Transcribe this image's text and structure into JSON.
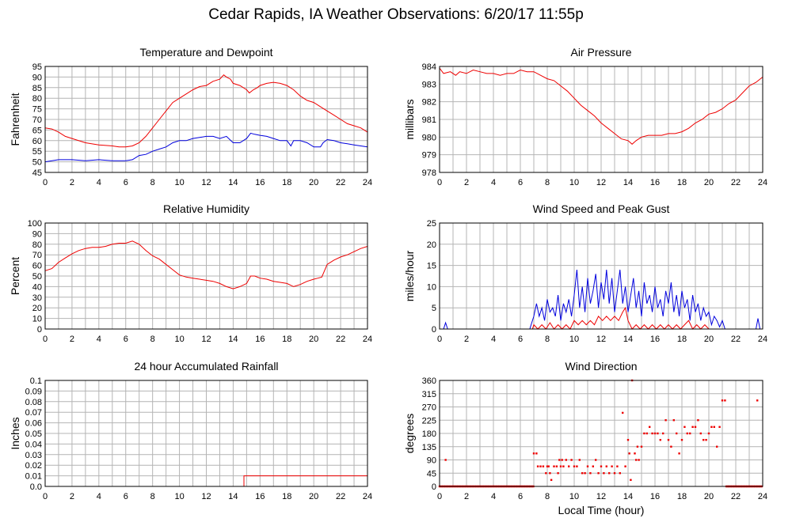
{
  "page": {
    "title": "Cedar Rapids, IA Weather Observations: 6/20/17 11:55p",
    "xaxis_label": "Local Time (hour)"
  },
  "colors": {
    "red": "#ee0000",
    "blue": "#0000dd",
    "grid": "#b4b4b4"
  },
  "chart_data": [
    {
      "id": "temp",
      "type": "line",
      "title": "Temperature and Dewpoint",
      "ylabel": "Fahrenheit",
      "xlim": [
        0,
        24
      ],
      "ylim": [
        45,
        95
      ],
      "xticks": [
        0,
        2,
        4,
        6,
        8,
        10,
        12,
        14,
        16,
        18,
        20,
        22,
        24
      ],
      "yticks": [
        45,
        50,
        55,
        60,
        65,
        70,
        75,
        80,
        85,
        90,
        95
      ],
      "series": [
        {
          "color": "#ee0000",
          "x": [
            0,
            0.5,
            1,
            1.5,
            2,
            3,
            4,
            5,
            5.5,
            6,
            6.5,
            7,
            7.5,
            8,
            8.5,
            9,
            9.5,
            10,
            10.5,
            11,
            11.5,
            12,
            12.5,
            13,
            13.3,
            13.5,
            13.8,
            14,
            14.5,
            15,
            15.2,
            15.5,
            15.8,
            16,
            16.5,
            17,
            17.5,
            18,
            18.5,
            19,
            19.5,
            20,
            20.5,
            21,
            21.5,
            22,
            22.5,
            23,
            23.5,
            24
          ],
          "y": [
            66,
            65.5,
            64,
            62,
            61,
            59,
            58,
            57.5,
            57,
            57,
            57.5,
            59,
            62,
            66,
            70,
            74,
            78,
            80,
            82,
            84,
            85.5,
            86,
            88,
            89,
            91,
            90,
            89,
            87,
            86,
            84,
            82.5,
            84,
            85,
            86,
            87,
            87.5,
            87,
            86,
            84,
            81,
            79,
            78,
            76,
            74,
            72,
            70,
            68,
            67,
            66,
            64
          ]
        },
        {
          "color": "#0000dd",
          "x": [
            0,
            1,
            2,
            3,
            4,
            5,
            6,
            6.5,
            7,
            7.5,
            8,
            8.5,
            9,
            9.5,
            10,
            10.5,
            11,
            11.5,
            12,
            12.5,
            13,
            13.5,
            14,
            14.5,
            15,
            15.3,
            15.6,
            16,
            16.5,
            17,
            17.5,
            18,
            18.3,
            18.5,
            19,
            19.5,
            20,
            20.5,
            20.7,
            21,
            21.5,
            22,
            22.5,
            23,
            23.5,
            24
          ],
          "y": [
            50,
            51,
            51,
            50.5,
            51,
            50.5,
            50.5,
            51,
            53,
            53.5,
            55,
            56,
            57,
            59,
            60,
            60,
            61,
            61.5,
            62,
            62,
            61,
            62,
            59,
            59,
            61,
            63.5,
            63,
            62.5,
            62,
            61,
            60,
            60,
            57.5,
            60,
            60,
            59,
            57,
            57,
            59,
            60.5,
            60,
            59,
            58.5,
            58,
            57.5,
            57
          ]
        }
      ]
    },
    {
      "id": "pressure",
      "type": "line",
      "title": "Air Pressure",
      "ylabel": "millibars",
      "xlim": [
        0,
        24
      ],
      "ylim": [
        978,
        984
      ],
      "xticks": [
        0,
        2,
        4,
        6,
        8,
        10,
        12,
        14,
        16,
        18,
        20,
        22,
        24
      ],
      "yticks": [
        978,
        979,
        980,
        981,
        982,
        983,
        984
      ],
      "series": [
        {
          "color": "#ee0000",
          "x": [
            0,
            0.3,
            0.8,
            1.2,
            1.5,
            2,
            2.5,
            3,
            3.5,
            4,
            4.5,
            5,
            5.5,
            6,
            6.5,
            7,
            7.5,
            8,
            8.5,
            9,
            9.5,
            10,
            10.5,
            11,
            11.5,
            12,
            12.5,
            13,
            13.5,
            14,
            14.3,
            14.6,
            15,
            15.5,
            16,
            16.5,
            17,
            17.5,
            18,
            18.5,
            19,
            19.5,
            20,
            20.5,
            21,
            21.5,
            22,
            22.5,
            23,
            23.5,
            24
          ],
          "y": [
            983.9,
            983.6,
            983.7,
            983.5,
            983.7,
            983.6,
            983.8,
            983.7,
            983.6,
            983.6,
            983.5,
            983.6,
            983.6,
            983.8,
            983.7,
            983.7,
            983.5,
            983.3,
            983.2,
            982.9,
            982.6,
            982.2,
            981.8,
            981.5,
            981.2,
            980.8,
            980.5,
            980.2,
            979.9,
            979.8,
            979.6,
            979.8,
            980,
            980.1,
            980.1,
            980.1,
            980.2,
            980.2,
            980.3,
            980.5,
            980.8,
            981,
            981.3,
            981.4,
            981.6,
            981.9,
            982.1,
            982.5,
            982.9,
            983.1,
            983.4
          ]
        }
      ]
    },
    {
      "id": "rh",
      "type": "line",
      "title": "Relative Humidity",
      "ylabel": "Percent",
      "xlim": [
        0,
        24
      ],
      "ylim": [
        0,
        100
      ],
      "xticks": [
        0,
        2,
        4,
        6,
        8,
        10,
        12,
        14,
        16,
        18,
        20,
        22,
        24
      ],
      "yticks": [
        0,
        10,
        20,
        30,
        40,
        50,
        60,
        70,
        80,
        90,
        100
      ],
      "series": [
        {
          "color": "#ee0000",
          "x": [
            0,
            0.5,
            1,
            1.5,
            2,
            2.5,
            3,
            3.5,
            4,
            4.5,
            5,
            5.5,
            6,
            6.5,
            7,
            7.5,
            8,
            8.5,
            9,
            9.5,
            10,
            10.5,
            11,
            11.5,
            12,
            12.5,
            13,
            13.5,
            14,
            14.5,
            15,
            15.3,
            15.6,
            16,
            16.5,
            17,
            17.5,
            18,
            18.5,
            19,
            19.5,
            20,
            20.3,
            20.6,
            21,
            21.5,
            22,
            22.5,
            23,
            23.5,
            24
          ],
          "y": [
            55,
            57,
            63,
            67,
            71,
            74,
            76,
            77,
            77,
            78,
            80,
            81,
            81,
            83,
            80,
            74,
            69,
            66,
            61,
            56,
            51,
            49,
            48,
            47,
            46,
            45,
            43,
            40,
            38,
            40,
            43,
            50,
            50,
            48,
            47,
            45,
            44,
            43,
            40,
            42,
            45,
            47,
            48,
            49,
            61,
            65,
            68,
            70,
            73,
            76,
            78
          ]
        }
      ]
    },
    {
      "id": "wind",
      "type": "line",
      "title": "Wind Speed and Peak Gust",
      "ylabel": "miles/hour",
      "xlim": [
        0,
        24
      ],
      "ylim": [
        0,
        25
      ],
      "xticks": [
        0,
        2,
        4,
        6,
        8,
        10,
        12,
        14,
        16,
        18,
        20,
        22,
        24
      ],
      "yticks": [
        0,
        5,
        10,
        15,
        20,
        25
      ],
      "series": [
        {
          "color": "#0000dd",
          "x": [
            0,
            0.3,
            0.45,
            0.6,
            1,
            6.7,
            7,
            7.2,
            7.4,
            7.6,
            7.8,
            8,
            8.2,
            8.4,
            8.6,
            8.8,
            9,
            9.2,
            9.4,
            9.6,
            9.8,
            10,
            10.2,
            10.4,
            10.6,
            10.8,
            11,
            11.2,
            11.4,
            11.6,
            11.8,
            12,
            12.2,
            12.4,
            12.6,
            12.8,
            13,
            13.2,
            13.4,
            13.6,
            13.8,
            14,
            14.2,
            14.4,
            14.6,
            14.8,
            15,
            15.2,
            15.4,
            15.6,
            15.8,
            16,
            16.2,
            16.4,
            16.6,
            16.8,
            17,
            17.2,
            17.4,
            17.6,
            17.8,
            18,
            18.2,
            18.4,
            18.6,
            18.8,
            19,
            19.2,
            19.4,
            19.6,
            19.8,
            20,
            20.2,
            20.4,
            20.6,
            20.8,
            21,
            21.2,
            21.3,
            23.5,
            23.65,
            23.8,
            24
          ],
          "y": [
            0,
            0,
            1.5,
            0,
            0,
            0,
            3,
            6,
            3,
            5,
            2,
            7,
            4,
            5,
            3,
            8,
            2,
            6,
            4,
            7,
            3,
            8,
            14,
            5,
            10,
            4,
            12,
            6,
            9,
            13,
            5,
            11,
            7,
            14,
            6,
            12,
            4,
            9,
            14,
            6,
            10,
            4,
            8,
            12,
            5,
            9,
            3,
            11,
            6,
            8,
            4,
            10,
            5,
            7,
            3,
            9,
            6,
            11,
            4,
            8,
            3,
            9,
            5,
            7,
            2,
            8,
            4,
            6,
            2,
            5,
            3,
            4,
            1,
            3,
            2,
            0.5,
            2,
            0,
            0,
            0,
            2.5,
            0,
            0
          ]
        },
        {
          "color": "#ee0000",
          "x": [
            0,
            6.9,
            7,
            7.3,
            7.6,
            7.9,
            8.2,
            8.5,
            8.8,
            9.1,
            9.4,
            9.7,
            10,
            10.3,
            10.6,
            10.9,
            11.2,
            11.5,
            11.8,
            12.1,
            12.4,
            12.7,
            13,
            13.3,
            13.6,
            13.8,
            14,
            14.3,
            14.6,
            14.9,
            15.2,
            15.5,
            15.8,
            16.1,
            16.4,
            16.7,
            17,
            17.3,
            17.6,
            17.9,
            18.2,
            18.5,
            18.8,
            19.1,
            19.4,
            19.7,
            20,
            20.3,
            24
          ],
          "y": [
            0,
            0,
            1,
            0,
            1,
            0,
            1.5,
            0,
            1,
            0,
            1,
            0,
            2,
            1,
            2,
            1,
            2,
            1,
            3,
            2,
            3,
            2,
            3,
            2,
            4,
            5,
            2,
            0,
            1,
            0,
            1,
            0,
            1,
            0,
            1,
            0,
            1,
            0,
            1,
            0,
            1,
            2,
            0,
            1,
            0,
            1,
            0,
            0,
            0
          ]
        }
      ]
    },
    {
      "id": "rain",
      "type": "line",
      "title": "24 hour Accumulated Rainfall",
      "ylabel": "Inches",
      "xlim": [
        0,
        24
      ],
      "ylim": [
        0,
        0.1
      ],
      "xticks": [
        0,
        2,
        4,
        6,
        8,
        10,
        12,
        14,
        16,
        18,
        20,
        22,
        24
      ],
      "yticks": [
        0.0,
        0.01,
        0.02,
        0.03,
        0.04,
        0.05,
        0.06,
        0.07,
        0.08,
        0.09,
        0.1
      ],
      "ytick_labels": [
        "0.0",
        "0.01",
        "0.02",
        "0.03",
        "0.04",
        "0.05",
        "0.06",
        "0.07",
        "0.08",
        "0.09",
        "0.1"
      ],
      "series": [
        {
          "color": "#ee0000",
          "x": [
            0,
            14.8,
            14.8,
            24
          ],
          "y": [
            0,
            0,
            0.01,
            0.01
          ]
        }
      ]
    },
    {
      "id": "winddir",
      "type": "scatter",
      "title": "Wind Direction",
      "ylabel": "degrees",
      "xlim": [
        0,
        24
      ],
      "ylim": [
        0,
        360
      ],
      "xticks": [
        0,
        2,
        4,
        6,
        8,
        10,
        12,
        14,
        16,
        18,
        20,
        22,
        24
      ],
      "yticks": [
        0,
        45,
        90,
        135,
        180,
        225,
        270,
        315,
        360
      ],
      "baseline_points": {
        "y": 0,
        "ranges": [
          [
            0,
            7.0
          ],
          [
            21.3,
            24
          ]
        ],
        "step": 0.085
      },
      "points": [
        [
          0.45,
          90
        ],
        [
          7.0,
          112
        ],
        [
          7.2,
          112
        ],
        [
          7.3,
          68
        ],
        [
          7.5,
          68
        ],
        [
          7.7,
          68
        ],
        [
          7.9,
          45
        ],
        [
          8.0,
          68
        ],
        [
          8.1,
          68
        ],
        [
          8.2,
          45
        ],
        [
          8.3,
          22
        ],
        [
          8.5,
          68
        ],
        [
          8.7,
          68
        ],
        [
          8.8,
          45
        ],
        [
          8.9,
          90
        ],
        [
          9.0,
          68
        ],
        [
          9.1,
          90
        ],
        [
          9.2,
          68
        ],
        [
          9.4,
          90
        ],
        [
          9.6,
          68
        ],
        [
          9.8,
          90
        ],
        [
          10.0,
          68
        ],
        [
          10.2,
          68
        ],
        [
          10.4,
          90
        ],
        [
          10.6,
          45
        ],
        [
          10.8,
          45
        ],
        [
          11.0,
          68
        ],
        [
          11.2,
          45
        ],
        [
          11.4,
          68
        ],
        [
          11.6,
          90
        ],
        [
          11.8,
          45
        ],
        [
          12.0,
          68
        ],
        [
          12.2,
          45
        ],
        [
          12.4,
          68
        ],
        [
          12.6,
          45
        ],
        [
          12.8,
          68
        ],
        [
          13.0,
          45
        ],
        [
          13.2,
          68
        ],
        [
          13.4,
          45
        ],
        [
          13.6,
          250
        ],
        [
          13.8,
          68
        ],
        [
          14.0,
          158
        ],
        [
          14.1,
          112
        ],
        [
          14.2,
          22
        ],
        [
          14.3,
          360
        ],
        [
          14.5,
          112
        ],
        [
          14.6,
          90
        ],
        [
          14.7,
          135
        ],
        [
          14.8,
          90
        ],
        [
          15.0,
          135
        ],
        [
          15.2,
          180
        ],
        [
          15.4,
          180
        ],
        [
          15.6,
          202
        ],
        [
          15.8,
          180
        ],
        [
          16.0,
          180
        ],
        [
          16.2,
          180
        ],
        [
          16.4,
          158
        ],
        [
          16.6,
          180
        ],
        [
          16.8,
          225
        ],
        [
          17.0,
          158
        ],
        [
          17.2,
          135
        ],
        [
          17.4,
          225
        ],
        [
          17.6,
          180
        ],
        [
          17.8,
          112
        ],
        [
          18.0,
          158
        ],
        [
          18.2,
          202
        ],
        [
          18.4,
          180
        ],
        [
          18.6,
          180
        ],
        [
          18.8,
          202
        ],
        [
          19.0,
          202
        ],
        [
          19.2,
          225
        ],
        [
          19.4,
          180
        ],
        [
          19.6,
          158
        ],
        [
          19.8,
          158
        ],
        [
          20.0,
          180
        ],
        [
          20.2,
          202
        ],
        [
          20.4,
          202
        ],
        [
          20.6,
          135
        ],
        [
          20.8,
          202
        ],
        [
          21.0,
          292
        ],
        [
          21.2,
          292
        ],
        [
          23.6,
          292
        ]
      ]
    }
  ]
}
